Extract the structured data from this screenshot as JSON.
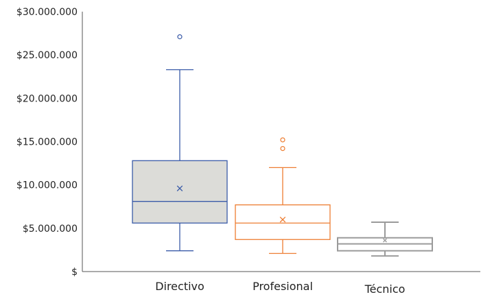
{
  "chart_data": {
    "type": "boxplot",
    "title": "",
    "xlabel": "",
    "ylabel": "",
    "ylim": [
      0,
      30000000
    ],
    "yticks": [
      0,
      5000000,
      10000000,
      15000000,
      20000000,
      25000000,
      30000000
    ],
    "ytick_labels": [
      "$",
      "$5.000.000",
      "$10.000.000",
      "$15.000.000",
      "$20.000.000",
      "$25.000.000",
      "$30.000.000"
    ],
    "grid": false,
    "legend": "none",
    "categories": [
      "Directivo",
      "Profesional",
      "Técnico"
    ],
    "series": [
      {
        "category": "Directivo",
        "color": "#3a5ba8",
        "fill": "#dcdcd8",
        "whisker_low": 2400000,
        "q1": 5600000,
        "median": 8100000,
        "q3": 12800000,
        "whisker_high": 23300000,
        "mean": 9600000,
        "outliers": [
          27100000
        ]
      },
      {
        "category": "Profesional",
        "color": "#ed7d31",
        "fill": "#ffffff",
        "whisker_low": 2100000,
        "q1": 3700000,
        "median": 5600000,
        "q3": 7700000,
        "whisker_high": 12000000,
        "mean": 6000000,
        "outliers": [
          14200000,
          15200000
        ]
      },
      {
        "category": "Técnico",
        "color": "#9a9a9a",
        "fill": "#ffffff",
        "whisker_low": 1800000,
        "q1": 2400000,
        "median": 3200000,
        "q3": 3900000,
        "whisker_high": 5700000,
        "mean": 3600000,
        "outliers": []
      }
    ]
  }
}
